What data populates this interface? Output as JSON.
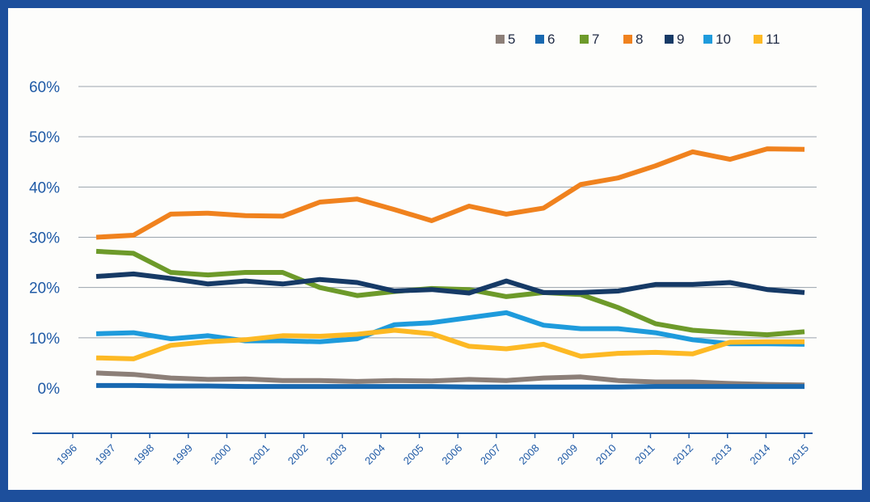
{
  "chart_data": {
    "type": "line",
    "title": "",
    "xlabel": "",
    "ylabel": "",
    "ylim": [
      0,
      60
    ],
    "y_ticks": [
      "0%",
      "10%",
      "20%",
      "30%",
      "40%",
      "50%",
      "60%"
    ],
    "grid": true,
    "legend_position": "top-right",
    "categories": [
      "1996",
      "1997",
      "1998",
      "1999",
      "2000",
      "2001",
      "2002",
      "2003",
      "2004",
      "2005",
      "2006",
      "2007",
      "2008",
      "2009",
      "2010",
      "2011",
      "2012",
      "2013",
      "2014",
      "2015"
    ],
    "series": [
      {
        "name": "5",
        "color": "#8c7f78",
        "values": [
          3.0,
          2.7,
          2.0,
          1.7,
          1.8,
          1.5,
          1.5,
          1.3,
          1.5,
          1.4,
          1.7,
          1.5,
          2.0,
          2.2,
          1.5,
          1.2,
          1.2,
          0.9,
          0.7,
          0.6
        ]
      },
      {
        "name": "6",
        "color": "#1868b0",
        "values": [
          0.5,
          0.5,
          0.4,
          0.4,
          0.3,
          0.3,
          0.3,
          0.3,
          0.3,
          0.3,
          0.2,
          0.2,
          0.2,
          0.2,
          0.2,
          0.3,
          0.3,
          0.3,
          0.3,
          0.3
        ]
      },
      {
        "name": "7",
        "color": "#6d9a2a",
        "values": [
          27.2,
          26.8,
          23.0,
          22.5,
          23.0,
          23.0,
          20.0,
          18.4,
          19.2,
          19.8,
          19.6,
          18.2,
          19.0,
          18.6,
          16.0,
          12.8,
          11.5,
          11.0,
          10.6,
          11.2
        ]
      },
      {
        "name": "8",
        "color": "#f0821e",
        "values": [
          30.0,
          30.4,
          34.6,
          34.8,
          34.3,
          34.2,
          37.0,
          37.6,
          35.5,
          33.3,
          36.2,
          34.6,
          35.8,
          40.5,
          41.8,
          44.2,
          47.0,
          45.5,
          47.6,
          47.5
        ]
      },
      {
        "name": "9",
        "color": "#163a66",
        "values": [
          22.2,
          22.7,
          21.8,
          20.7,
          21.3,
          20.7,
          21.6,
          21.0,
          19.3,
          19.6,
          18.9,
          21.3,
          19.0,
          19.0,
          19.3,
          20.6,
          20.6,
          21.0,
          19.6,
          19.0
        ]
      },
      {
        "name": "10",
        "color": "#1e9bdc",
        "values": [
          10.8,
          11.0,
          9.8,
          10.4,
          9.4,
          9.4,
          9.2,
          9.8,
          12.6,
          13.0,
          14.0,
          15.0,
          12.5,
          11.8,
          11.8,
          11.0,
          9.6,
          8.8,
          8.8,
          8.7
        ]
      },
      {
        "name": "11",
        "color": "#fdb924",
        "values": [
          6.0,
          5.8,
          8.5,
          9.2,
          9.6,
          10.4,
          10.3,
          10.7,
          11.5,
          10.8,
          8.3,
          7.8,
          8.7,
          6.3,
          6.9,
          7.1,
          6.8,
          9.1,
          9.2,
          9.2
        ]
      }
    ]
  }
}
